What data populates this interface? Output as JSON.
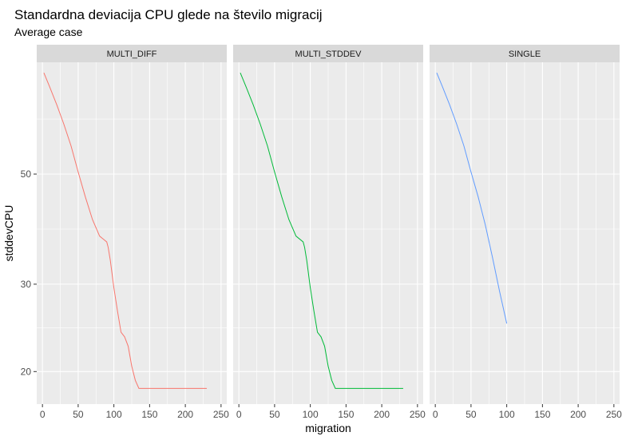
{
  "chart_data": {
    "type": "line",
    "title": "Standardna deviacija CPU glede na število migracij",
    "subtitle": "Average case",
    "xlabel": "migration",
    "ylabel": "stddevCPU",
    "y_scale": "log",
    "xlim": [
      -8,
      258
    ],
    "ylim": [
      17.2,
      84
    ],
    "x_ticks": [
      0,
      50,
      100,
      150,
      200,
      250
    ],
    "x_tick_labels": [
      "0",
      "50",
      "100",
      "150",
      "200",
      "250"
    ],
    "y_ticks": [
      20,
      30,
      50
    ],
    "y_tick_labels": [
      "20",
      "30",
      "50"
    ],
    "grid": true,
    "legend": "none",
    "background": "#EBEBEB",
    "strip_fill": "#D9D9D9",
    "panels": [
      {
        "label": "MULTI_DIFF",
        "color": "#F8766D",
        "x": [
          2,
          10,
          20,
          30,
          40,
          50,
          60,
          70,
          80,
          90,
          92,
          95,
          100,
          105,
          110,
          115,
          120,
          125,
          130,
          135,
          150,
          180,
          230
        ],
        "y": [
          80,
          75,
          69,
          63,
          57,
          50.5,
          45,
          40.5,
          37.5,
          36.5,
          35.6,
          33.5,
          29.5,
          26.5,
          24,
          23.5,
          22.5,
          20.5,
          19.2,
          18.5,
          18.5,
          18.5,
          18.5
        ]
      },
      {
        "label": "MULTI_STDDEV",
        "color": "#00BA38",
        "x": [
          2,
          10,
          20,
          30,
          40,
          50,
          60,
          70,
          80,
          90,
          92,
          95,
          100,
          105,
          110,
          115,
          120,
          125,
          130,
          135,
          150,
          180,
          230
        ],
        "y": [
          80,
          75,
          69,
          63,
          57,
          50.5,
          45,
          40.5,
          37.5,
          36.5,
          35.6,
          33.5,
          29.5,
          26.5,
          24,
          23.5,
          22.5,
          20.5,
          19.2,
          18.5,
          18.5,
          18.5,
          18.5
        ]
      },
      {
        "label": "SINGLE",
        "color": "#619CFF",
        "x": [
          2,
          10,
          20,
          30,
          40,
          50,
          60,
          70,
          80,
          90,
          100
        ],
        "y": [
          80,
          75,
          69,
          63,
          57,
          50.5,
          45,
          39.5,
          34,
          29,
          25
        ]
      }
    ]
  }
}
